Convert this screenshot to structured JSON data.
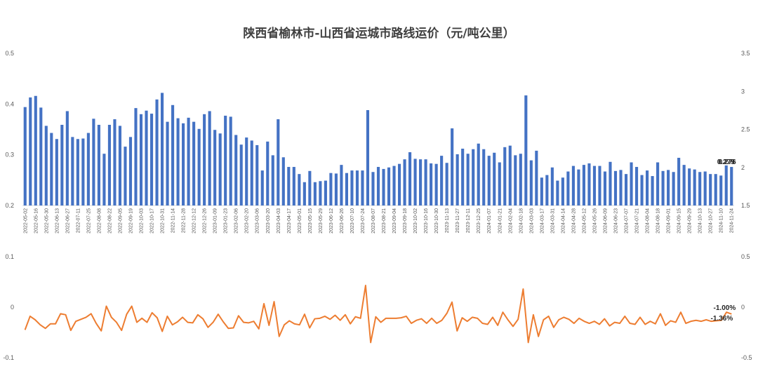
{
  "chart_data": [
    {
      "type": "bar",
      "title": "陕西省榆林市-山西省运城市路线运价（元/吨公里）",
      "series": [
        {
          "values": [
            0.394,
            0.413,
            0.416,
            0.393,
            0.357,
            0.343,
            0.331,
            0.359,
            0.386,
            0.335,
            0.331,
            0.332,
            0.343,
            0.371,
            0.359,
            0.302,
            0.359,
            0.37,
            0.357,
            0.316,
            0.335,
            0.392,
            0.38,
            0.387,
            0.381,
            0.409,
            0.422,
            0.365,
            0.398,
            0.372,
            0.362,
            0.373,
            0.365,
            0.351,
            0.38,
            0.386,
            0.349,
            0.342,
            0.377,
            0.375,
            0.339,
            0.32,
            0.334,
            0.328,
            0.319,
            0.269,
            0.326,
            0.299,
            0.37,
            0.295,
            0.276,
            0.276,
            0.262,
            0.246,
            0.268,
            0.246,
            0.248,
            0.249,
            0.264,
            0.263,
            0.28,
            0.264,
            0.269,
            0.269,
            0.269,
            0.388,
            0.266,
            0.276,
            0.272,
            0.275,
            0.278,
            0.282,
            0.291,
            0.305,
            0.292,
            0.291,
            0.291,
            0.283,
            0.282,
            0.298,
            0.284,
            0.352,
            0.301,
            0.312,
            0.302,
            0.311,
            0.322,
            0.311,
            0.298,
            0.304,
            0.285,
            0.315,
            0.318,
            0.299,
            0.302,
            0.417,
            0.289,
            0.308,
            0.255,
            0.26,
            0.275,
            0.249,
            0.255,
            0.267,
            0.278,
            0.271,
            0.28,
            0.283,
            0.278,
            0.278,
            0.267,
            0.286,
            0.268,
            0.27,
            0.262,
            0.285,
            0.276,
            0.26,
            0.269,
            0.258,
            0.285,
            0.268,
            0.27,
            0.266,
            0.294,
            0.28,
            0.273,
            0.271,
            0.266,
            0.267,
            0.262,
            0.262,
            0.259,
            0.279,
            0.276
          ]
        }
      ],
      "x_tick_labels": [
        "2022-05-02",
        "2022-05-16",
        "2022-05-30",
        "2022-06-13",
        "2022-06-27",
        "2022-07-11",
        "2022-07-25",
        "2022-08-08",
        "2022-08-22",
        "2022-09-05",
        "2022-09-19",
        "2022-10-03",
        "2022-10-17",
        "2022-10-31",
        "2022-11-14",
        "2022-11-28",
        "2022-12-12",
        "2022-12-26",
        "2023-01-09",
        "2023-01-23",
        "2023-02-06",
        "2023-02-20",
        "2023-03-06",
        "2023-03-20",
        "2023-04-03",
        "2023-04-17",
        "2023-05-01",
        "2023-05-15",
        "2023-05-29",
        "2023-06-12",
        "2023-06-26",
        "2023-07-10",
        "2023-07-24",
        "2023-08-07",
        "2023-08-21",
        "2023-09-04",
        "2023-09-18",
        "2023-10-02",
        "2023-10-16",
        "2023-10-30",
        "2023-11-13",
        "2023-11-27",
        "2023-12-11",
        "2023-12-25",
        "2024-01-07",
        "2024-01-21",
        "2024-02-04",
        "2024-02-18",
        "2024-03-03",
        "2024-03-17",
        "2024-03-31",
        "2024-04-14",
        "2024-04-28",
        "2024-05-12",
        "2024-05-26",
        "2024-06-09",
        "2024-06-23",
        "2024-07-07",
        "2024-07-21",
        "2024-08-04",
        "2024-08-18",
        "2024-09-01",
        "2024-09-15",
        "2024-09-29",
        "2024-10-13",
        "2024-10-27",
        "2024-11-10",
        "2024-11-24"
      ],
      "y_left_ticks": [
        "0.2",
        "0.3",
        "0.4",
        "0.5"
      ],
      "ylim_left": [
        0.2,
        0.5
      ],
      "y_right_ticks": [
        "1.5",
        "2",
        "2.5",
        "3",
        "3.5"
      ],
      "data_labels": [
        "0.279",
        "0.276"
      ],
      "bar_color": "#4472c4",
      "grid": false
    },
    {
      "type": "line",
      "series": [
        {
          "values": [
            -0.045,
            -0.018,
            -0.025,
            -0.035,
            -0.042,
            -0.033,
            -0.033,
            -0.013,
            -0.015,
            -0.046,
            -0.028,
            -0.024,
            -0.02,
            -0.013,
            -0.032,
            -0.047,
            0.002,
            -0.02,
            -0.03,
            -0.046,
            -0.014,
            0.002,
            -0.03,
            -0.022,
            -0.03,
            -0.011,
            -0.021,
            -0.048,
            -0.018,
            -0.035,
            -0.029,
            -0.02,
            -0.03,
            -0.031,
            -0.015,
            -0.023,
            -0.04,
            -0.03,
            -0.014,
            -0.029,
            -0.042,
            -0.041,
            -0.017,
            -0.03,
            -0.031,
            -0.028,
            -0.043,
            0.007,
            -0.036,
            0.011,
            -0.058,
            -0.035,
            -0.027,
            -0.033,
            -0.035,
            -0.014,
            -0.041,
            -0.023,
            -0.022,
            -0.018,
            -0.024,
            -0.016,
            -0.026,
            -0.015,
            -0.033,
            -0.019,
            -0.022,
            0.043,
            -0.07,
            -0.019,
            -0.03,
            -0.022,
            -0.022,
            -0.022,
            -0.021,
            -0.018,
            -0.032,
            -0.026,
            -0.023,
            -0.032,
            -0.022,
            -0.032,
            -0.026,
            -0.012,
            0.01,
            -0.047,
            -0.021,
            -0.028,
            -0.02,
            -0.022,
            -0.032,
            -0.034,
            -0.02,
            -0.036,
            -0.01,
            -0.025,
            -0.038,
            -0.024,
            0.036,
            -0.07,
            -0.015,
            -0.058,
            -0.025,
            -0.018,
            -0.04,
            -0.025,
            -0.02,
            -0.024,
            -0.032,
            -0.022,
            -0.028,
            -0.032,
            -0.028,
            -0.034,
            -0.023,
            -0.037,
            -0.03,
            -0.032,
            -0.018,
            -0.032,
            -0.034,
            -0.02,
            -0.034,
            -0.028,
            -0.033,
            -0.013,
            -0.036,
            -0.027,
            -0.03,
            -0.01,
            -0.032,
            -0.028,
            -0.026,
            -0.028,
            -0.025,
            -0.028,
            -0.027,
            -0.026,
            -0.01,
            -0.0136
          ]
        }
      ],
      "y_left_ticks": [
        "-0.1",
        "0",
        "0.1"
      ],
      "ylim_left": [
        -0.1,
        0.1
      ],
      "y_right_ticks": [
        "-0.5",
        "0",
        "0.5"
      ],
      "data_labels": [
        "-1.00%",
        "-1.36%"
      ],
      "line_color": "#ed7d31",
      "grid": false
    }
  ]
}
